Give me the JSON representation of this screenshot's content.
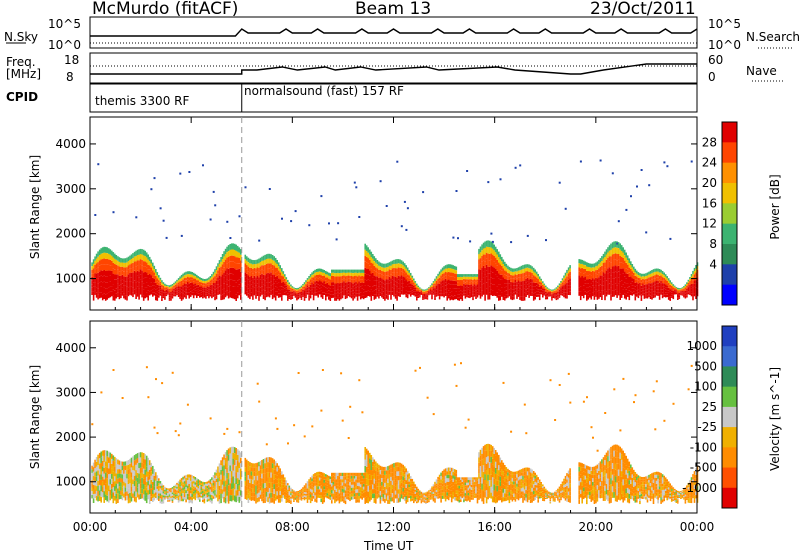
{
  "header": {
    "station": "McMurdo (fitACF)",
    "beam": "Beam 13",
    "date": "23/Oct/2011"
  },
  "top_panel": {
    "left_label_1": "N.Sky",
    "left_ticks_1": [
      "10^5",
      "10^0"
    ],
    "right_label_1": "N.Search",
    "right_ticks_1": [
      "10^5",
      "10^0"
    ],
    "left_label_2a": "Freq.",
    "left_label_2b": "[MHz]",
    "left_ticks_2": [
      "18",
      "8"
    ],
    "right_label_2": "Nave",
    "right_ticks_2": [
      "60",
      "0"
    ],
    "cpid_label": "CPID",
    "cpid_1": "themis 3300 RF",
    "cpid_2": "normalsound (fast) 157 RF"
  },
  "chart_data": [
    {
      "type": "heatmap",
      "name": "Power",
      "ylabel": "Slant Range [km]",
      "colorbar_label": "Power [dB]",
      "colorbar_ticks": [
        "28",
        "24",
        "20",
        "16",
        "12",
        "8",
        "4"
      ],
      "colorbar_colors": [
        "#e00000",
        "#ff4500",
        "#ff9000",
        "#f0c000",
        "#9acd32",
        "#3cb371",
        "#2e8b57",
        "#1e40aa",
        "#0000ff"
      ],
      "x_ticks": [
        "00:00",
        "04:00",
        "08:00",
        "12:00",
        "16:00",
        "20:00",
        "00:00"
      ],
      "y_ticks": [
        "1000",
        "2000",
        "3000",
        "4000"
      ],
      "ylim": [
        300,
        4600
      ],
      "xlim_hours": [
        0,
        24
      ],
      "scatter_band_km": [
        500,
        1500
      ]
    },
    {
      "type": "heatmap",
      "name": "Velocity",
      "ylabel": "Slant Range [km]",
      "colorbar_label": "Velocity [m s^-1]",
      "colorbar_ticks": [
        "1000",
        "500",
        "100",
        "25",
        "-25",
        "-100",
        "-500",
        "-1000"
      ],
      "colorbar_colors": [
        "#2040c0",
        "#3a6ad0",
        "#2e8b57",
        "#66c040",
        "#c8c8c8",
        "#f0b000",
        "#ff8c00",
        "#ff5000",
        "#e00000"
      ],
      "x_ticks": [
        "00:00",
        "04:00",
        "08:00",
        "12:00",
        "16:00",
        "20:00",
        "00:00"
      ],
      "y_ticks": [
        "1000",
        "2000",
        "3000",
        "4000"
      ],
      "ylim": [
        300,
        4600
      ],
      "xlim_hours": [
        0,
        24
      ]
    }
  ],
  "xaxis_label": "Time UT"
}
